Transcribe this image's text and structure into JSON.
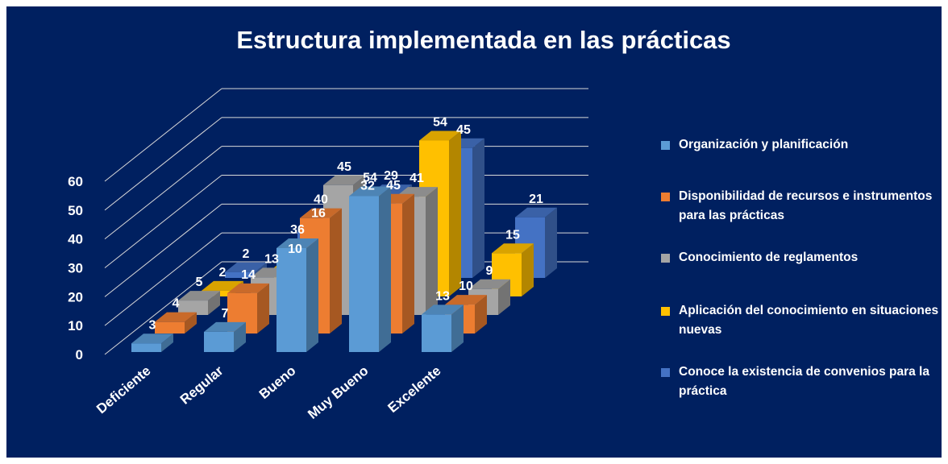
{
  "chart_data": {
    "type": "bar3d",
    "title": "Estructura implementada en las prácticas",
    "categories": [
      "Deficiente",
      "Regular",
      "Bueno",
      "Muy Bueno",
      "Excelente"
    ],
    "series": [
      {
        "name": "Organización y planificación",
        "color": "#5b9bd5",
        "values": [
          3,
          7,
          36,
          54,
          13
        ]
      },
      {
        "name": "Disponibilidad de recursos e instrumentos para las prácticas",
        "color": "#ed7d31",
        "values": [
          4,
          14,
          40,
          45,
          10
        ]
      },
      {
        "name": "Conocimiento de reglamentos",
        "color": "#a5a5a5",
        "values": [
          5,
          13,
          45,
          41,
          9
        ]
      },
      {
        "name": "Aplicación del conocimiento en situaciones nuevas",
        "color": "#ffc000",
        "values": [
          2,
          10,
          32,
          54,
          15
        ]
      },
      {
        "name": "Conoce la existencia de convenios para la práctica",
        "color": "#4472c4",
        "values": [
          2,
          16,
          29,
          45,
          21
        ]
      }
    ],
    "ylim": [
      0,
      60
    ],
    "yticks": [
      0,
      10,
      20,
      30,
      40,
      50,
      60
    ],
    "grid": true,
    "legend": "right"
  }
}
